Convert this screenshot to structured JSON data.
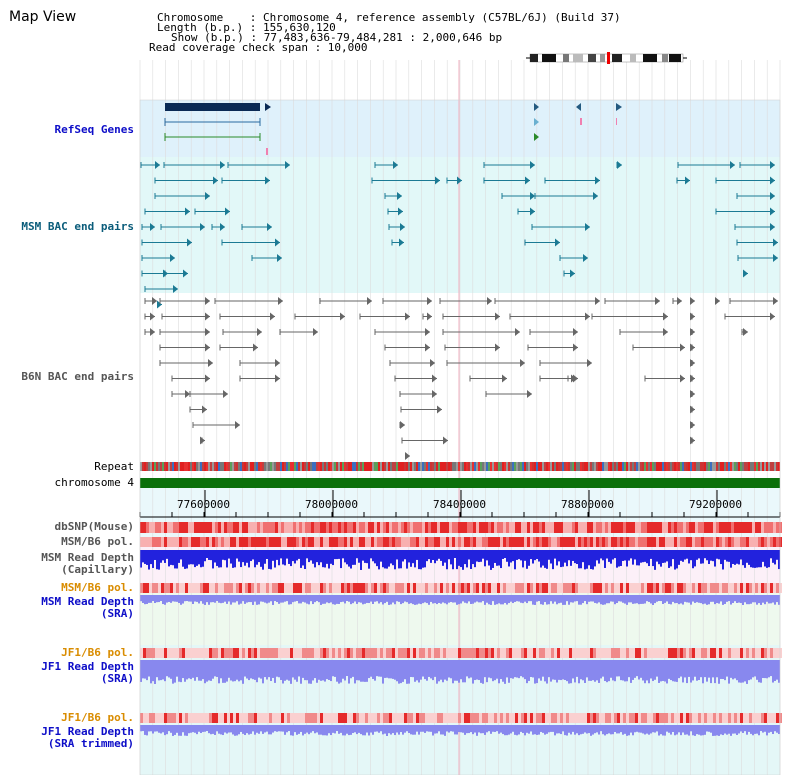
{
  "view_title": "Map View",
  "info_lines": [
    "Chromosome    : Chromosome 4, reference assembly (C57BL/6J) (Build 37)",
    "Length (b.p.) : 155,630,120",
    "Show (b.p.) : 77,483,636-79,484,281 : 2,000,646 bp",
    "Read coverage check span : 10,000"
  ],
  "tracks": {
    "refseq": "RefSeq Genes",
    "msm_bac": "MSM BAC end pairs",
    "b6n_bac": "B6N BAC end pairs",
    "repeat": "Repeat",
    "chromosome": "chromosome 4",
    "dbsnp": "dbSNP(Mouse)",
    "msm_b6_pol_1": "MSM/B6 pol.",
    "msm_read_depth_cap": [
      "MSM Read Depth",
      "(Capillary)"
    ],
    "msm_b6_pol_2": "MSM/B6 pol.",
    "msm_read_depth_sra": [
      "MSM Read Depth",
      "(SRA)"
    ],
    "jf1_b6_pol_1": "JF1/B6 pol.",
    "jf1_read_depth_sra": [
      "JF1 Read Depth",
      "(SRA)"
    ],
    "jf1_b6_pol_2": "JF1/B6 pol.",
    "jf1_read_depth_trimmed": [
      "JF1 Read Depth",
      "(SRA trimmed)"
    ]
  },
  "axis_ticks": [
    "77600000",
    "78000000",
    "78400000",
    "78800000",
    "79200000"
  ],
  "colors": {
    "refseq_bg": "#dff1fb",
    "msm_bac_bg": "#e2f8f8",
    "gene_dark": "#0a2a55",
    "msm_feature": "#1b7a94",
    "b6n_feature": "#666666",
    "chromosome_bar": "#0b700b",
    "snp_red": "#e82828",
    "depth_blue": "#2222dd",
    "depth_light_blue": "#8888ee",
    "label_blue": "#0d0dc8",
    "label_teal": "#0a5c7a",
    "label_orange": "#d98c00"
  }
}
